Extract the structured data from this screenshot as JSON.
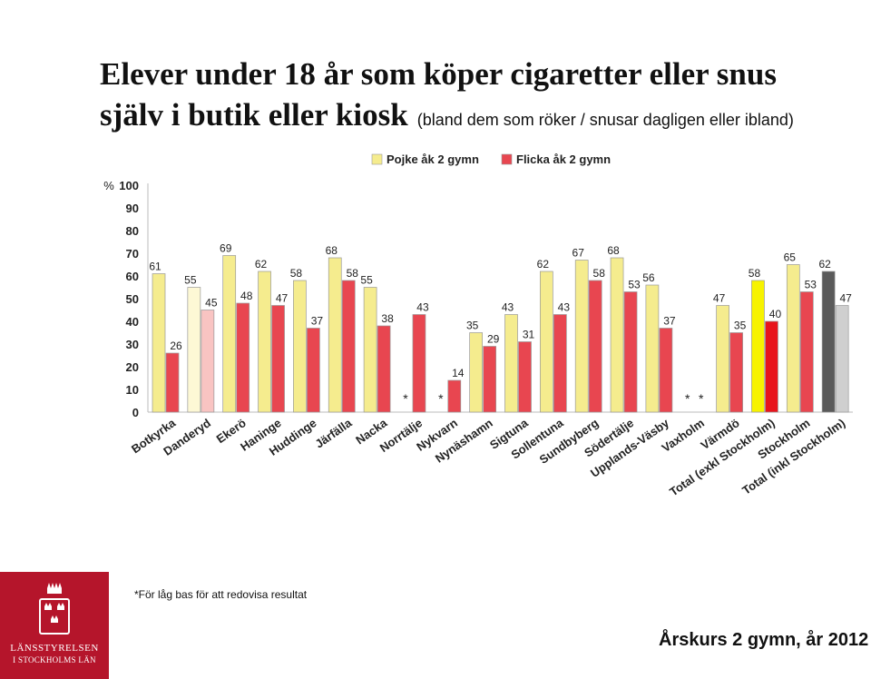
{
  "title_line1": "Elever under 18 år som köper cigaretter eller snus",
  "title_line2_main": "själv i butik eller kiosk",
  "title_line2_sub": "(bland dem som röker / snusar dagligen eller ibland)",
  "footnote": "*För låg bas för att redovisa resultat",
  "footer": "Årskurs 2 gymn, år 2012",
  "logo": {
    "line1": "LÄNSSTYRELSEN",
    "line2": "I STOCKHOLMS LÄN",
    "icon": "three-crowns-icon"
  },
  "colors": {
    "boy": "#f5ec8e",
    "girl": "#e84650",
    "boy_danderyd": "#fdf8d5",
    "girl_danderyd": "#f9c4c2",
    "boy_total_excl": "#f7f300",
    "girl_total_excl": "#e8141c",
    "boy_total_incl": "#5a5a5a",
    "girl_total_incl": "#cfcfcf"
  },
  "chart_data": {
    "type": "bar",
    "ylabel": "%",
    "ylim": [
      0,
      100
    ],
    "yticks": [
      "0",
      "10",
      "20",
      "30",
      "40",
      "50",
      "60",
      "70",
      "80",
      "90",
      "100"
    ],
    "legend_position": "top",
    "categories": [
      "Botkyrka",
      "Danderyd",
      "Ekerö",
      "Haninge",
      "Huddinge",
      "Järfälla",
      "Nacka",
      "Norrtälje",
      "Nykvarn",
      "Nynäshamn",
      "Sigtuna",
      "Sollentuna",
      "Sundbyberg",
      "Södertälje",
      "Upplands-Väsby",
      "Vaxholm",
      "Värmdö",
      "Total (exkl Stockholm)",
      "Stockholm",
      "Total (inkl Stockholm)"
    ],
    "series": [
      {
        "name": "Pojke åk 2 gymn",
        "values": [
          61,
          55,
          69,
          62,
          58,
          68,
          55,
          null,
          null,
          35,
          43,
          62,
          67,
          68,
          56,
          null,
          47,
          58,
          65,
          62
        ]
      },
      {
        "name": "Flicka åk 2 gymn",
        "values": [
          26,
          45,
          48,
          47,
          37,
          58,
          38,
          43,
          14,
          29,
          31,
          43,
          58,
          53,
          37,
          null,
          35,
          40,
          53,
          47
        ]
      }
    ],
    "missing_marker": "*"
  }
}
